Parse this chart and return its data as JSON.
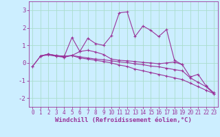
{
  "background_color": "#cceeff",
  "grid_color": "#aaddcc",
  "line_color": "#993399",
  "xlabel": "Windchill (Refroidissement éolien,°C)",
  "xlabel_fontsize": 6.5,
  "tick_fontsize": 5.5,
  "ytick_fontsize": 6.5,
  "ylim": [
    -2.5,
    3.5
  ],
  "xlim": [
    -0.5,
    23.5
  ],
  "yticks": [
    -2,
    -1,
    0,
    1,
    2,
    3
  ],
  "xticks": [
    0,
    1,
    2,
    3,
    4,
    5,
    6,
    7,
    8,
    9,
    10,
    11,
    12,
    13,
    14,
    15,
    16,
    17,
    18,
    19,
    20,
    21,
    22,
    23
  ],
  "series": [
    [
      null,
      0.4,
      0.5,
      0.4,
      0.35,
      1.45,
      0.65,
      1.4,
      1.1,
      1.0,
      1.55,
      2.85,
      2.9,
      1.5,
      2.1,
      1.85,
      1.5,
      1.9,
      0.15,
      -0.1,
      null,
      null,
      null,
      null
    ],
    [
      null,
      0.4,
      0.45,
      0.38,
      0.32,
      0.42,
      0.65,
      0.72,
      0.62,
      0.48,
      0.22,
      0.15,
      0.12,
      0.08,
      0.03,
      0.0,
      -0.05,
      0.0,
      0.05,
      -0.1,
      -0.8,
      -0.65,
      -1.3,
      -1.7
    ],
    [
      -0.2,
      0.38,
      0.5,
      0.42,
      0.38,
      0.42,
      0.35,
      0.28,
      0.22,
      0.18,
      0.12,
      0.06,
      0.02,
      -0.05,
      -0.1,
      -0.18,
      -0.22,
      -0.3,
      -0.38,
      -0.45,
      -0.85,
      -1.1,
      -1.35,
      -1.75
    ],
    [
      -0.2,
      0.38,
      0.5,
      0.42,
      0.38,
      0.42,
      0.28,
      0.22,
      0.15,
      0.08,
      0.0,
      -0.12,
      -0.2,
      -0.35,
      -0.45,
      -0.55,
      -0.65,
      -0.75,
      -0.85,
      -0.95,
      -1.15,
      -1.35,
      -1.55,
      -1.75
    ]
  ]
}
